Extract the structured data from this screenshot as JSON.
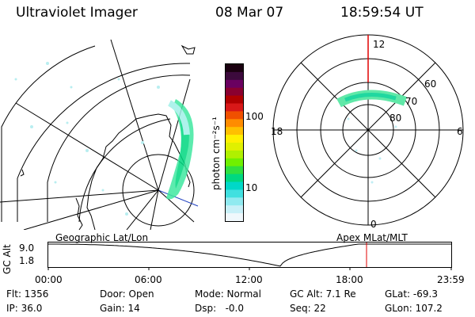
{
  "header": {
    "title": "Ultraviolet Imager",
    "date": "08 Mar 07",
    "time": "18:59:54 UT"
  },
  "colorbar": {
    "unit_label": "photon cm⁻²s⁻¹",
    "tick_labels": [
      "100",
      "10"
    ],
    "colors": [
      "#1a0010",
      "#3c0a3c",
      "#6a0060",
      "#8a0030",
      "#b00000",
      "#d81818",
      "#f05000",
      "#ff8c00",
      "#ffc000",
      "#fff000",
      "#e0f000",
      "#b0f000",
      "#70f000",
      "#30e040",
      "#00d880",
      "#00d8c8",
      "#40e0e0",
      "#90eaf0",
      "#c8f0f8",
      "#f0f8fc"
    ]
  },
  "polar_plot": {
    "mlt_labels": {
      "top": "12",
      "left": "18",
      "right": "6",
      "bottom": "0"
    },
    "lat_labels": [
      "60",
      "70",
      "80"
    ]
  },
  "timeline": {
    "left_title": "Geographic Lat/Lon",
    "right_title": "Apex MLat/MLT",
    "axis_label": "GC Alt",
    "y_labels": [
      "9.0",
      "1.8"
    ],
    "x_labels": [
      "00:00",
      "06:00",
      "12:00",
      "18:00",
      "23:59"
    ],
    "marker_color": "#e00000"
  },
  "status": {
    "flt": "Flt: 1356",
    "ip": "IP: 36.0",
    "door": "Door: Open",
    "gain": "Gain: 14",
    "mode": "Mode: Normal",
    "dsp": "Dsp:   -0.0",
    "gc_alt": "GC Alt: 7.1 Re",
    "seq": "Seq: 22",
    "glat": "GLat: -69.3",
    "glon": "GLon: 107.2"
  }
}
